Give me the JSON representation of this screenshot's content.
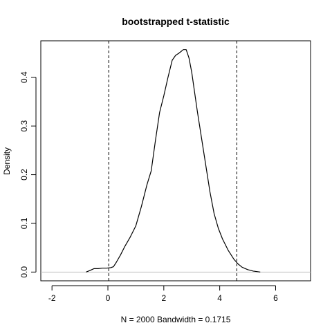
{
  "chart_data": {
    "type": "line",
    "title": "bootstrapped t-statistic",
    "xlabel": "N = 2000   Bandwidth = 0.1715",
    "ylabel": "Density",
    "xlim": [
      -2.4,
      7.25
    ],
    "ylim": [
      -0.018,
      0.475
    ],
    "x_ticks": [
      -2,
      0,
      2,
      4,
      6
    ],
    "x_tick_labels": [
      "-2",
      "0",
      "2",
      "4",
      "6"
    ],
    "y_ticks": [
      0.0,
      0.1,
      0.2,
      0.3,
      0.4
    ],
    "y_tick_labels": [
      "0.0",
      "0.1",
      "0.2",
      "0.3",
      "0.4"
    ],
    "baseline": 0,
    "vlines": [
      0.03,
      4.61
    ],
    "series": [
      {
        "x": [
          -0.78,
          -0.65,
          -0.5,
          -0.35,
          -0.2,
          -0.05,
          0.1,
          0.2,
          0.3,
          0.45,
          0.6,
          0.8,
          1.0,
          1.2,
          1.4,
          1.55,
          1.7,
          1.85,
          2.0,
          2.15,
          2.3,
          2.42,
          2.55,
          2.7,
          2.8,
          2.9,
          3.0,
          3.1,
          3.2,
          3.35,
          3.5,
          3.65,
          3.8,
          3.95,
          4.1,
          4.3,
          4.5,
          4.65,
          4.8,
          5.0,
          5.2,
          5.45
        ],
        "y": [
          0.0,
          0.003,
          0.007,
          0.007,
          0.008,
          0.008,
          0.009,
          0.011,
          0.02,
          0.035,
          0.052,
          0.072,
          0.095,
          0.135,
          0.18,
          0.208,
          0.27,
          0.328,
          0.362,
          0.4,
          0.435,
          0.445,
          0.45,
          0.457,
          0.457,
          0.44,
          0.41,
          0.37,
          0.33,
          0.275,
          0.22,
          0.165,
          0.12,
          0.09,
          0.068,
          0.045,
          0.027,
          0.017,
          0.01,
          0.005,
          0.002,
          0.0
        ]
      }
    ]
  }
}
